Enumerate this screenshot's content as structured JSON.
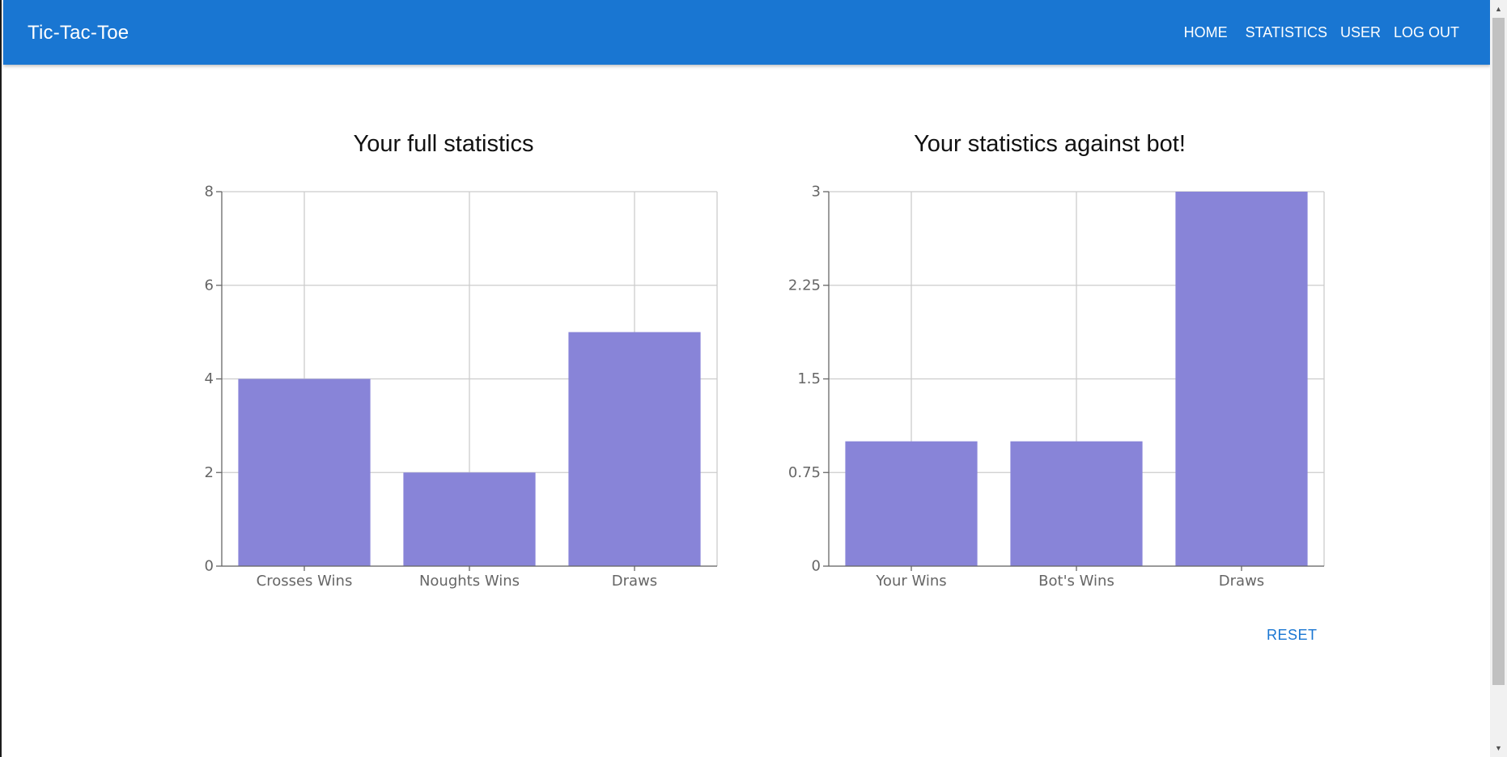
{
  "app": {
    "title": "Tic-Tac-Toe"
  },
  "nav": {
    "home": "HOME",
    "statistics": "STATISTICS",
    "user": "USER",
    "logout": "LOG OUT"
  },
  "charts": {
    "full_title": "Your full statistics",
    "bot_title": "Your statistics against bot!"
  },
  "actions": {
    "reset": "RESET"
  },
  "scrollbar": {
    "up_icon": "triangle-up",
    "down_icon": "triangle-down"
  },
  "colors": {
    "appbar": "#1976d2",
    "bar": "#8884d8",
    "grid": "#cccccc"
  },
  "chart_data": [
    {
      "type": "bar",
      "title": "Your full statistics",
      "categories": [
        "Crosses Wins",
        "Noughts Wins",
        "Draws"
      ],
      "values": [
        4,
        2,
        5
      ],
      "yticks": [
        "0",
        "2",
        "4",
        "6",
        "8"
      ],
      "ylim": [
        0,
        8
      ],
      "grid": true,
      "color": "#8884d8"
    },
    {
      "type": "bar",
      "title": "Your statistics against bot!",
      "categories": [
        "Your Wins",
        "Bot's Wins",
        "Draws"
      ],
      "values": [
        1,
        1,
        3
      ],
      "yticks": [
        "0",
        "0.75",
        "1.5",
        "2.25",
        "3"
      ],
      "ylim": [
        0,
        3
      ],
      "grid": true,
      "color": "#8884d8"
    }
  ]
}
